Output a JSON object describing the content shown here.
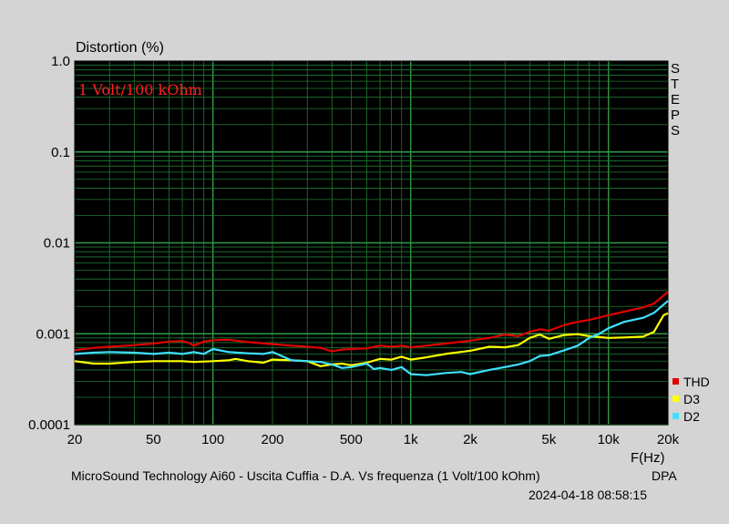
{
  "chart_data": {
    "type": "line",
    "title": "Distortion (%)",
    "xlabel": "F(Hz)",
    "x_scale": "log",
    "y_scale": "log",
    "xlim": [
      20,
      20000
    ],
    "ylim": [
      0.0001,
      1.0
    ],
    "grid": true,
    "legend_position": "right-bottom",
    "background": "#000000",
    "grid_color": "#1f7a34",
    "x_ticks": [
      {
        "value": 20,
        "label": "20"
      },
      {
        "value": 50,
        "label": "50"
      },
      {
        "value": 100,
        "label": "100"
      },
      {
        "value": 200,
        "label": "200"
      },
      {
        "value": 500,
        "label": "500"
      },
      {
        "value": 1000,
        "label": "1k"
      },
      {
        "value": 2000,
        "label": "2k"
      },
      {
        "value": 5000,
        "label": "5k"
      },
      {
        "value": 10000,
        "label": "10k"
      },
      {
        "value": 20000,
        "label": "20k"
      }
    ],
    "y_ticks": [
      {
        "value": 1.0,
        "label": "1.0"
      },
      {
        "value": 0.1,
        "label": "0.1"
      },
      {
        "value": 0.01,
        "label": "0.01"
      },
      {
        "value": 0.001,
        "label": "0.001"
      },
      {
        "value": 0.0001,
        "label": "0.0001"
      }
    ],
    "annotation": "1 Volt/100 kOhm",
    "right_label_letters": [
      "S",
      "T",
      "E",
      "P",
      "S"
    ],
    "series": [
      {
        "name": "THD",
        "color": "#e00000",
        "points": [
          [
            20,
            0.00066
          ],
          [
            25,
            0.0007
          ],
          [
            30,
            0.00072
          ],
          [
            40,
            0.00075
          ],
          [
            50,
            0.00078
          ],
          [
            60,
            0.00082
          ],
          [
            70,
            0.00083
          ],
          [
            75,
            0.0008
          ],
          [
            80,
            0.00074
          ],
          [
            90,
            0.00082
          ],
          [
            100,
            0.00085
          ],
          [
            120,
            0.00086
          ],
          [
            150,
            0.00081
          ],
          [
            200,
            0.00077
          ],
          [
            250,
            0.00074
          ],
          [
            300,
            0.00072
          ],
          [
            350,
            0.0007
          ],
          [
            400,
            0.00064
          ],
          [
            450,
            0.00067
          ],
          [
            500,
            0.00068
          ],
          [
            600,
            0.00069
          ],
          [
            700,
            0.00074
          ],
          [
            800,
            0.00072
          ],
          [
            900,
            0.00074
          ],
          [
            1000,
            0.00071
          ],
          [
            1200,
            0.00074
          ],
          [
            1500,
            0.00078
          ],
          [
            2000,
            0.00084
          ],
          [
            2500,
            0.0009
          ],
          [
            3000,
            0.00098
          ],
          [
            3500,
            0.00094
          ],
          [
            4000,
            0.00105
          ],
          [
            4500,
            0.00112
          ],
          [
            5000,
            0.00108
          ],
          [
            6000,
            0.00125
          ],
          [
            7000,
            0.00135
          ],
          [
            8000,
            0.00142
          ],
          [
            10000,
            0.0016
          ],
          [
            12000,
            0.00175
          ],
          [
            15000,
            0.00195
          ],
          [
            17000,
            0.00215
          ],
          [
            20000,
            0.0029
          ]
        ]
      },
      {
        "name": "D3",
        "color": "#ffff00",
        "points": [
          [
            20,
            0.0005
          ],
          [
            25,
            0.00047
          ],
          [
            30,
            0.00047
          ],
          [
            40,
            0.00049
          ],
          [
            50,
            0.0005
          ],
          [
            70,
            0.0005
          ],
          [
            80,
            0.00049
          ],
          [
            100,
            0.0005
          ],
          [
            120,
            0.00051
          ],
          [
            130,
            0.00053
          ],
          [
            150,
            0.0005
          ],
          [
            180,
            0.00048
          ],
          [
            200,
            0.00052
          ],
          [
            250,
            0.00051
          ],
          [
            300,
            0.0005
          ],
          [
            350,
            0.00044
          ],
          [
            400,
            0.00046
          ],
          [
            450,
            0.00047
          ],
          [
            500,
            0.00045
          ],
          [
            600,
            0.00048
          ],
          [
            700,
            0.00053
          ],
          [
            800,
            0.00052
          ],
          [
            900,
            0.00056
          ],
          [
            1000,
            0.00052
          ],
          [
            1200,
            0.00055
          ],
          [
            1500,
            0.0006
          ],
          [
            2000,
            0.00065
          ],
          [
            2500,
            0.00072
          ],
          [
            3000,
            0.00071
          ],
          [
            3500,
            0.00075
          ],
          [
            4000,
            0.0009
          ],
          [
            4500,
            0.00098
          ],
          [
            5000,
            0.00088
          ],
          [
            6000,
            0.00097
          ],
          [
            7000,
            0.00099
          ],
          [
            8000,
            0.00094
          ],
          [
            10000,
            0.0009
          ],
          [
            12000,
            0.00091
          ],
          [
            15000,
            0.00093
          ],
          [
            17000,
            0.00105
          ],
          [
            19000,
            0.0016
          ],
          [
            20000,
            0.00168
          ]
        ]
      },
      {
        "name": "D2",
        "color": "#40e0ff",
        "points": [
          [
            20,
            0.0006
          ],
          [
            25,
            0.00062
          ],
          [
            30,
            0.00063
          ],
          [
            40,
            0.00062
          ],
          [
            50,
            0.0006
          ],
          [
            60,
            0.00062
          ],
          [
            70,
            0.0006
          ],
          [
            80,
            0.00063
          ],
          [
            90,
            0.0006
          ],
          [
            100,
            0.00068
          ],
          [
            120,
            0.00063
          ],
          [
            150,
            0.00061
          ],
          [
            180,
            0.0006
          ],
          [
            200,
            0.00063
          ],
          [
            250,
            0.00051
          ],
          [
            300,
            0.0005
          ],
          [
            350,
            0.00049
          ],
          [
            400,
            0.00046
          ],
          [
            450,
            0.00042
          ],
          [
            500,
            0.00043
          ],
          [
            550,
            0.00045
          ],
          [
            600,
            0.00047
          ],
          [
            650,
            0.00041
          ],
          [
            700,
            0.00042
          ],
          [
            800,
            0.0004
          ],
          [
            900,
            0.00043
          ],
          [
            1000,
            0.00036
          ],
          [
            1200,
            0.00035
          ],
          [
            1500,
            0.00037
          ],
          [
            1800,
            0.00038
          ],
          [
            2000,
            0.00036
          ],
          [
            2500,
            0.0004
          ],
          [
            3000,
            0.00043
          ],
          [
            3500,
            0.00046
          ],
          [
            4000,
            0.0005
          ],
          [
            4500,
            0.00057
          ],
          [
            5000,
            0.00058
          ],
          [
            6000,
            0.00066
          ],
          [
            7000,
            0.00074
          ],
          [
            8000,
            0.0009
          ],
          [
            9000,
            0.001
          ],
          [
            10000,
            0.00115
          ],
          [
            12000,
            0.00135
          ],
          [
            15000,
            0.0015
          ],
          [
            17000,
            0.0017
          ],
          [
            20000,
            0.0023
          ]
        ]
      }
    ]
  },
  "footer": {
    "caption": "MicroSound Technology Ai60 - Uscita Cuffia - D.A. Vs frequenza (1 Volt/100 kOhm)",
    "brand": "DPA",
    "timestamp": "2024-04-18 08:58:15"
  }
}
